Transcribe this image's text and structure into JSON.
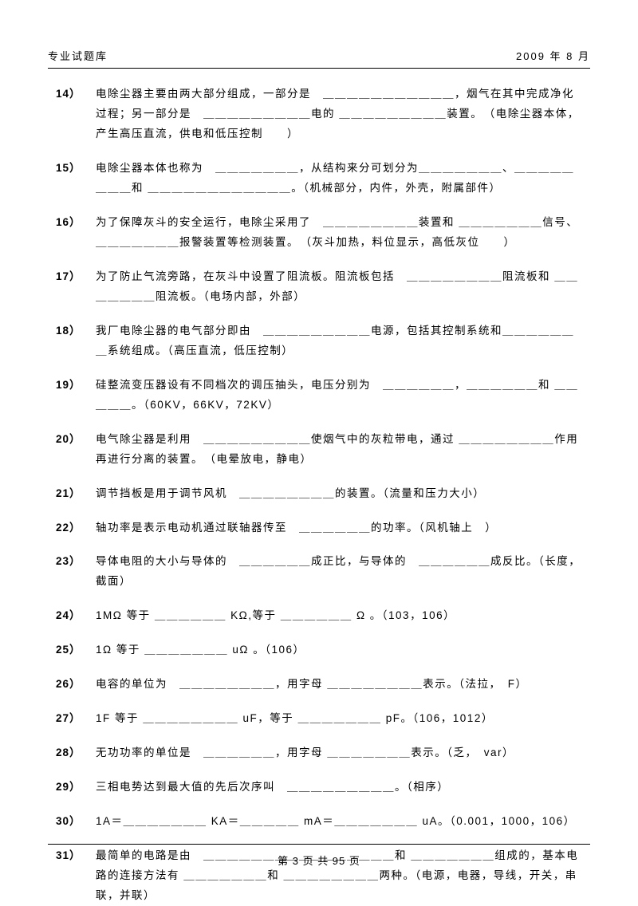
{
  "header": {
    "left": "专业试题库",
    "right": "2009 年 8 月"
  },
  "questions": [
    {
      "num": "14）",
      "text": "电除尘器主要由两大部分组成，一部分是　＿＿＿＿＿＿＿＿＿＿＿，烟气在其中完成净化过程；另一部分是　＿＿＿＿＿＿＿＿＿电的 ＿＿＿＿＿＿＿＿＿装置。　（电除尘器本体，产生高压直流，供电和低压控制　　）"
    },
    {
      "num": "15）",
      "text": "电除尘器本体也称为　＿＿＿＿＿＿＿，从结构来分可划分为＿＿＿＿＿＿＿、＿＿＿＿＿＿＿＿和 ＿＿＿＿＿＿＿＿＿＿＿＿。（机械部分，内件，外壳，附属部件）"
    },
    {
      "num": "16）",
      "text": "为了保障灰斗的安全运行，电除尘采用了　＿＿＿＿＿＿＿＿装置和 ＿＿＿＿＿＿＿信号、＿＿＿＿＿＿＿报警装置等检测装置。　（灰斗加热，料位显示，高低灰位　　）"
    },
    {
      "num": "17）",
      "text": "为了防止气流旁路，在灰斗中设置了阻流板。阻流板包括　＿＿＿＿＿＿＿＿阻流板和 ＿＿＿＿＿＿＿阻流板。（电场内部，外部）"
    },
    {
      "num": "18）",
      "text": "我厂电除尘器的电气部分即由　＿＿＿＿＿＿＿＿＿电源，包括其控制系统和＿＿＿＿＿＿＿系统组成。（高压直流，低压控制）"
    },
    {
      "num": "19）",
      "text": "硅整流变压器设有不同档次的调压抽头，电压分别为　＿＿＿＿＿＿，＿＿＿＿＿＿和 ＿＿＿＿＿。（60KV，66KV，72KV）"
    },
    {
      "num": "20）",
      "text": "电气除尘器是利用　＿＿＿＿＿＿＿＿＿使烟气中的灰粒带电，通过 ＿＿＿＿＿＿＿＿作用再进行分离的装置。　（电晕放电，静电）"
    },
    {
      "num": "21）",
      "text": "调节挡板是用于调节风机　＿＿＿＿＿＿＿＿的装置。（流量和压力大小）"
    },
    {
      "num": "22）",
      "text": "轴功率是表示电动机通过联轴器传至　＿＿＿＿＿＿的功率。（风机轴上　）"
    },
    {
      "num": "23）",
      "text": "导体电阻的大小与导体的　＿＿＿＿＿＿成正比，与导体的　＿＿＿＿＿＿成反比。（长度，截面）"
    },
    {
      "num": "24）",
      "text": "1MΩ 等于 ＿＿＿＿＿＿ KΩ,等于 ＿＿＿＿＿＿ Ω 。（103，106）"
    },
    {
      "num": "25）",
      "text": "1Ω 等于 ＿＿＿＿＿＿＿ uΩ 。（106）"
    },
    {
      "num": "26）",
      "text": "电容的单位为　＿＿＿＿＿＿＿＿，用字母 ＿＿＿＿＿＿＿＿表示。（法拉，　F）"
    },
    {
      "num": "27）",
      "text": "1F 等于 ＿＿＿＿＿＿＿＿ uF，等于 ＿＿＿＿＿＿＿ pF。（106，1012）"
    },
    {
      "num": "28）",
      "text": "无功功率的单位是　＿＿＿＿＿＿，用字母 ＿＿＿＿＿＿＿表示。（乏，　var）"
    },
    {
      "num": "29）",
      "text": "三相电势达到最大值的先后次序叫　＿＿＿＿＿＿＿＿＿。（相序）"
    },
    {
      "num": "30）",
      "text": "1A＝＿＿＿＿＿＿＿ KA＝＿＿＿＿＿ mA＝＿＿＿＿＿＿＿ uA。（0.001，1000，106）"
    },
    {
      "num": "31）",
      "text": "最简单的电路是由　＿＿＿＿＿＿＿＿＿＿＿＿＿＿＿＿和 ＿＿＿＿＿＿＿组成的，基本电路的连接方法有 ＿＿＿＿＿＿＿和 ＿＿＿＿＿＿＿＿两种。（电源，电器，导线，开关，串联，并联）"
    }
  ],
  "footer": {
    "text": "第 3 页 共 95 页"
  }
}
